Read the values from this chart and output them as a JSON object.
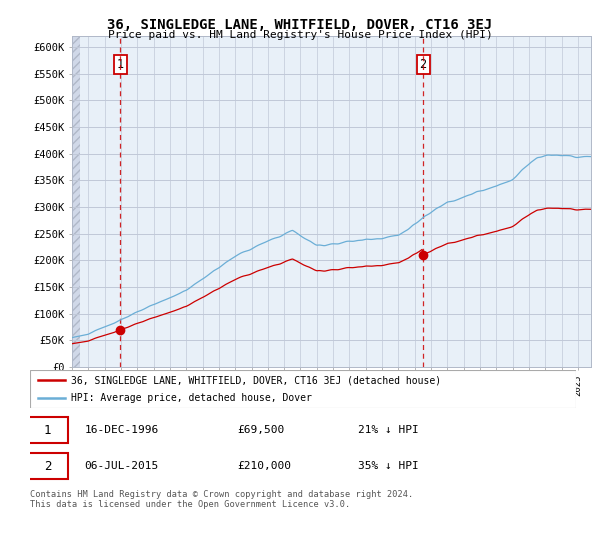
{
  "title": "36, SINGLEDGE LANE, WHITFIELD, DOVER, CT16 3EJ",
  "subtitle": "Price paid vs. HM Land Registry's House Price Index (HPI)",
  "background_color": "#ffffff",
  "plot_bg_color": "#e8f0f8",
  "hatch_bg_color": "#d0d8e8",
  "grid_color": "#c0c8d8",
  "ylim": [
    0,
    620000
  ],
  "yticks": [
    0,
    50000,
    100000,
    150000,
    200000,
    250000,
    300000,
    350000,
    400000,
    450000,
    500000,
    550000,
    600000
  ],
  "ytick_labels": [
    "£0",
    "£50K",
    "£100K",
    "£150K",
    "£200K",
    "£250K",
    "£300K",
    "£350K",
    "£400K",
    "£450K",
    "£500K",
    "£550K",
    "£600K"
  ],
  "sale1_x": 1996.96,
  "sale1_y": 69500,
  "sale2_x": 2015.51,
  "sale2_y": 210000,
  "legend_line1": "36, SINGLEDGE LANE, WHITFIELD, DOVER, CT16 3EJ (detached house)",
  "legend_line2": "HPI: Average price, detached house, Dover",
  "ann1_date": "16-DEC-1996",
  "ann1_price": "£69,500",
  "ann1_hpi": "21% ↓ HPI",
  "ann2_date": "06-JUL-2015",
  "ann2_price": "£210,000",
  "ann2_hpi": "35% ↓ HPI",
  "footer": "Contains HM Land Registry data © Crown copyright and database right 2024.\nThis data is licensed under the Open Government Licence v3.0.",
  "hpi_color": "#6baed6",
  "sale_color": "#cc0000",
  "vline_color": "#cc0000",
  "xmin": 1994.0,
  "xmax": 2025.8
}
